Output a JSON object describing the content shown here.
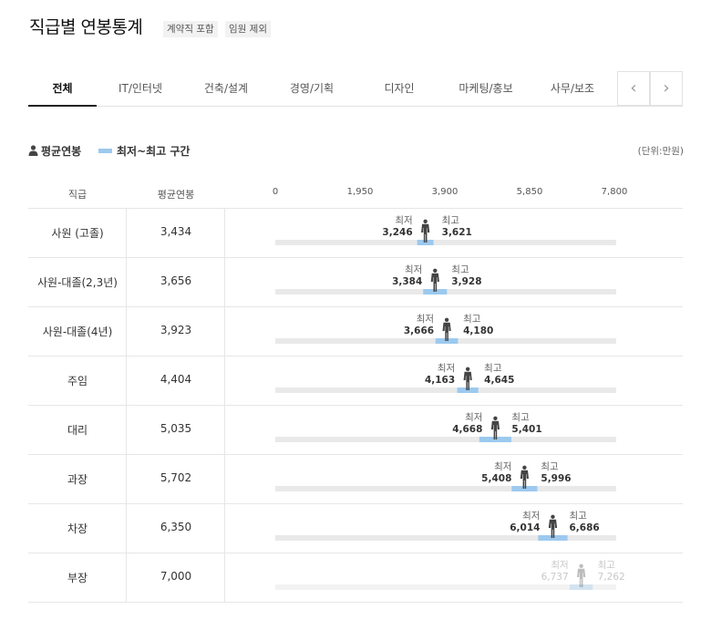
{
  "page": {
    "title": "직급별 연봉통계",
    "badges": [
      "계약직 포함",
      "임원 제외"
    ]
  },
  "tabs": [
    "전체",
    "IT/인터넷",
    "건축/설계",
    "경영/기획",
    "디자인",
    "마케팅/홍보",
    "사무/보조"
  ],
  "nav": {
    "prev": "‹",
    "next": "›"
  },
  "legend": {
    "avg_label": "평균연봉",
    "range_label": "최저~최고 구간",
    "unit": "(단위:만원)"
  },
  "table_headers": {
    "rank": "직급",
    "avg": "평균연봉"
  },
  "colors": {
    "bar_bg": "#e9e9e9",
    "range": "#9cc9ef",
    "person": "#444444"
  },
  "chart_data": {
    "type": "range",
    "xlim": [
      0,
      7800
    ],
    "xticks": [
      0,
      1950,
      3900,
      5850,
      7800
    ],
    "xtick_labels": [
      "0",
      "1,950",
      "3,900",
      "5,850",
      "7,800"
    ],
    "min_label": "최저",
    "max_label": "최고",
    "rows": [
      {
        "rank": "사원 (고졸)",
        "avg": 3434,
        "avg_label": "3,434",
        "min": 3246,
        "min_label": "3,246",
        "max": 3621,
        "max_label": "3,621",
        "faded": false
      },
      {
        "rank": "사원-대졸(2,3년)",
        "avg": 3656,
        "avg_label": "3,656",
        "min": 3384,
        "min_label": "3,384",
        "max": 3928,
        "max_label": "3,928",
        "faded": false
      },
      {
        "rank": "사원-대졸(4년)",
        "avg": 3923,
        "avg_label": "3,923",
        "min": 3666,
        "min_label": "3,666",
        "max": 4180,
        "max_label": "4,180",
        "faded": false
      },
      {
        "rank": "주임",
        "avg": 4404,
        "avg_label": "4,404",
        "min": 4163,
        "min_label": "4,163",
        "max": 4645,
        "max_label": "4,645",
        "faded": false
      },
      {
        "rank": "대리",
        "avg": 5035,
        "avg_label": "5,035",
        "min": 4668,
        "min_label": "4,668",
        "max": 5401,
        "max_label": "5,401",
        "faded": false
      },
      {
        "rank": "과장",
        "avg": 5702,
        "avg_label": "5,702",
        "min": 5408,
        "min_label": "5,408",
        "max": 5996,
        "max_label": "5,996",
        "faded": false
      },
      {
        "rank": "차장",
        "avg": 6350,
        "avg_label": "6,350",
        "min": 6014,
        "min_label": "6,014",
        "max": 6686,
        "max_label": "6,686",
        "faded": false
      },
      {
        "rank": "부장",
        "avg": 7000,
        "avg_label": "7,000",
        "min": 6737,
        "min_label": "6,737",
        "max": 7262,
        "max_label": "7,262",
        "faded": true
      }
    ]
  }
}
